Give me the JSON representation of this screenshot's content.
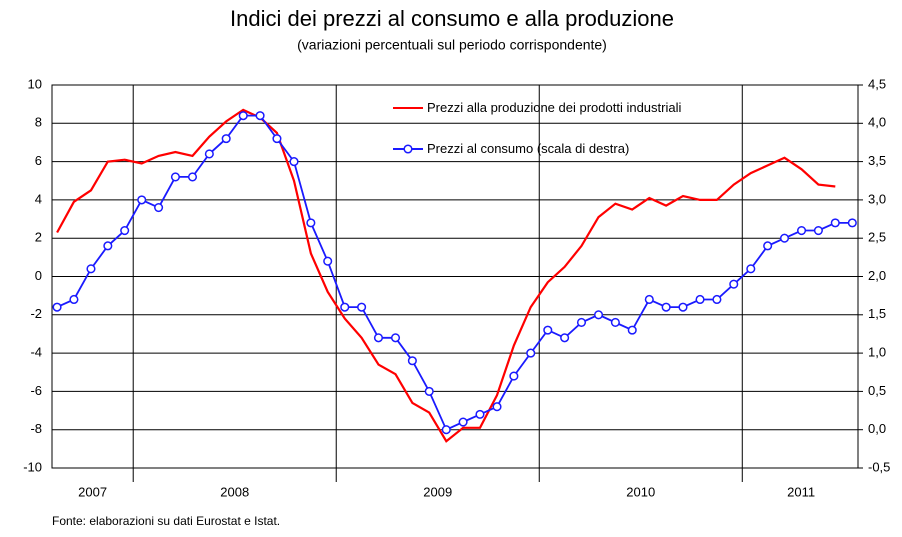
{
  "chart_data": {
    "type": "line",
    "title": "Indici dei prezzi al consumo e alla produzione",
    "subtitle": "(variazioni percentuali sul periodo corrispondente)",
    "source": "Fonte: elaborazioni su dati Eurostat e Istat.",
    "xlim": [
      2007.6,
      2011.57
    ],
    "xticks": [
      {
        "value": 2007.8,
        "label": "2007"
      },
      {
        "value": 2008.5,
        "label": "2008"
      },
      {
        "value": 2009.5,
        "label": "2009"
      },
      {
        "value": 2010.5,
        "label": "2010"
      },
      {
        "value": 2011.29,
        "label": "2011"
      }
    ],
    "xgrid": [
      2008,
      2009,
      2010,
      2011
    ],
    "ylim": [
      -10,
      10
    ],
    "yticks": [
      -10,
      -8,
      -6,
      -4,
      -2,
      0,
      2,
      4,
      6,
      8,
      10
    ],
    "y2lim": [
      -0.5,
      4.5
    ],
    "y2ticks": [
      {
        "value": -0.5,
        "label": "-0,5"
      },
      {
        "value": 0,
        "label": "0,0"
      },
      {
        "value": 0.5,
        "label": "0,5"
      },
      {
        "value": 1,
        "label": "1,0"
      },
      {
        "value": 1.5,
        "label": "1,5"
      },
      {
        "value": 2,
        "label": "2,0"
      },
      {
        "value": 2.5,
        "label": "2,5"
      },
      {
        "value": 3,
        "label": "3,0"
      },
      {
        "value": 3.5,
        "label": "3,5"
      },
      {
        "value": 4,
        "label": "4,0"
      },
      {
        "value": 4.5,
        "label": "4,5"
      }
    ],
    "grid": true,
    "series": [
      {
        "name": "Prezzi alla produzione dei prodotti industriali",
        "color": "#ff0000",
        "axis": "y",
        "x": [
          2007.625,
          2007.708,
          2007.792,
          2007.875,
          2007.958,
          2008.042,
          2008.125,
          2008.208,
          2008.292,
          2008.375,
          2008.458,
          2008.542,
          2008.625,
          2008.708,
          2008.792,
          2008.875,
          2008.958,
          2009.042,
          2009.125,
          2009.208,
          2009.292,
          2009.375,
          2009.458,
          2009.542,
          2009.625,
          2009.708,
          2009.792,
          2009.875,
          2009.958,
          2010.042,
          2010.125,
          2010.208,
          2010.292,
          2010.375,
          2010.458,
          2010.542,
          2010.625,
          2010.708,
          2010.792,
          2010.875,
          2010.958,
          2011.042,
          2011.125,
          2011.208,
          2011.292,
          2011.375,
          2011.458
        ],
        "values": [
          2.3,
          3.9,
          4.5,
          6.0,
          6.1,
          5.9,
          6.3,
          6.5,
          6.3,
          7.3,
          8.1,
          8.7,
          8.3,
          7.5,
          5.0,
          1.2,
          -0.8,
          -2.2,
          -3.2,
          -4.6,
          -5.1,
          -6.6,
          -7.1,
          -8.6,
          -7.9,
          -7.9,
          -6.2,
          -3.6,
          -1.6,
          -0.3,
          0.5,
          1.6,
          3.1,
          3.8,
          3.5,
          4.1,
          3.7,
          4.2,
          4.0,
          4.0,
          4.8,
          5.4,
          5.8,
          6.2,
          5.6,
          4.8,
          4.7
        ]
      },
      {
        "name": "Prezzi al consumo (scala di destra)",
        "color": "#1a1aff",
        "axis": "y2",
        "x": [
          2007.625,
          2007.708,
          2007.792,
          2007.875,
          2007.958,
          2008.042,
          2008.125,
          2008.208,
          2008.292,
          2008.375,
          2008.458,
          2008.542,
          2008.625,
          2008.708,
          2008.792,
          2008.875,
          2008.958,
          2009.042,
          2009.125,
          2009.208,
          2009.292,
          2009.375,
          2009.458,
          2009.542,
          2009.625,
          2009.708,
          2009.792,
          2009.875,
          2009.958,
          2010.042,
          2010.125,
          2010.208,
          2010.292,
          2010.375,
          2010.458,
          2010.542,
          2010.625,
          2010.708,
          2010.792,
          2010.875,
          2010.958,
          2011.042,
          2011.125,
          2011.208,
          2011.292,
          2011.375,
          2011.458,
          2011.542
        ],
        "values": [
          1.6,
          1.7,
          2.1,
          2.4,
          2.6,
          3.0,
          2.9,
          3.3,
          3.3,
          3.6,
          3.8,
          4.1,
          4.1,
          3.8,
          3.5,
          2.7,
          2.2,
          1.6,
          1.6,
          1.2,
          1.2,
          0.9,
          0.5,
          0.0,
          0.1,
          0.2,
          0.3,
          0.7,
          1.0,
          1.3,
          1.2,
          1.4,
          1.5,
          1.4,
          1.3,
          1.7,
          1.6,
          1.6,
          1.7,
          1.7,
          1.9,
          2.1,
          2.4,
          2.5,
          2.6,
          2.6,
          2.7,
          2.7
        ]
      }
    ]
  }
}
